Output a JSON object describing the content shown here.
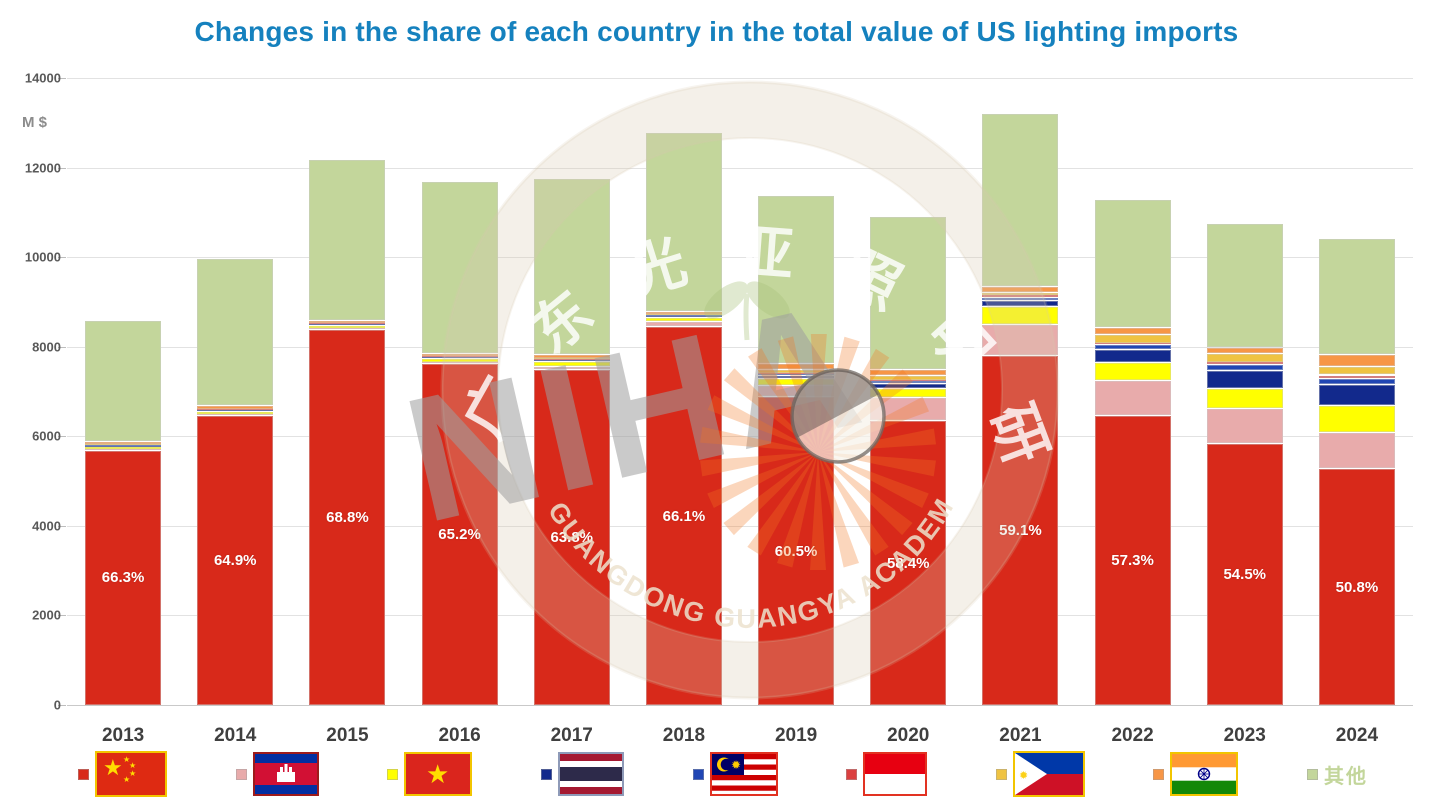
{
  "title": {
    "text": "Changes in the share of each country in the total value of US lighting imports",
    "color": "#1581BE"
  },
  "chart_data": {
    "type": "bar",
    "stacked": true,
    "title": "Changes in the share of each country in the total value of US lighting imports",
    "ylabel": "M $",
    "xlabel": "",
    "ylim": [
      0,
      14000
    ],
    "yticks": [
      0,
      2000,
      4000,
      6000,
      8000,
      10000,
      12000,
      14000
    ],
    "grid": "horizontal",
    "legend_position": "bottom",
    "categories": [
      "2013",
      "2014",
      "2015",
      "2016",
      "2017",
      "2018",
      "2019",
      "2020",
      "2021",
      "2022",
      "2023",
      "2024"
    ],
    "series": [
      {
        "key": "china",
        "name": "China",
        "color": "#D8291A",
        "values": [
          5700,
          6480,
          8390,
          7630,
          7500,
          8460,
          6890,
          6360,
          7810,
          6470,
          5860,
          5290
        ]
      },
      {
        "key": "cambodia",
        "name": "Cambodia",
        "color": "#E8ABAB",
        "values": [
          20,
          20,
          30,
          40,
          60,
          120,
          260,
          510,
          700,
          780,
          770,
          810
        ]
      },
      {
        "key": "vietnam",
        "name": "Vietnam",
        "color": "#FFFF00",
        "values": [
          40,
          60,
          60,
          80,
          120,
          90,
          160,
          200,
          390,
          400,
          450,
          600
        ]
      },
      {
        "key": "thailand",
        "name": "Thailand",
        "color": "#12298C",
        "values": [
          20,
          20,
          20,
          20,
          20,
          20,
          60,
          130,
          150,
          310,
          400,
          470
        ]
      },
      {
        "key": "malaysia",
        "name": "Malaysia",
        "color": "#2046B4",
        "values": [
          20,
          10,
          10,
          10,
          10,
          10,
          30,
          40,
          70,
          100,
          130,
          140
        ]
      },
      {
        "key": "indonesia",
        "name": "Indonesia",
        "color": "#DB4040",
        "values": [
          10,
          10,
          10,
          10,
          10,
          10,
          20,
          20,
          30,
          30,
          40,
          70
        ]
      },
      {
        "key": "philippines",
        "name": "Philippines",
        "color": "#EFC342",
        "values": [
          20,
          20,
          20,
          10,
          30,
          20,
          90,
          110,
          80,
          190,
          200,
          200
        ]
      },
      {
        "key": "india",
        "name": "India",
        "color": "#F79646",
        "values": [
          70,
          80,
          60,
          50,
          80,
          70,
          120,
          130,
          120,
          150,
          140,
          260
        ]
      },
      {
        "key": "others",
        "name": "其他",
        "color": "#C3D69B",
        "values": [
          2700,
          3280,
          3600,
          3850,
          3930,
          4000,
          3760,
          3410,
          3860,
          2860,
          2770,
          2590
        ]
      }
    ],
    "china_share_labels": [
      "66.3%",
      "64.9%",
      "68.8%",
      "65.2%",
      "63.8%",
      "66.1%",
      "60.5%",
      "58.4%",
      "59.1%",
      "57.3%",
      "54.5%",
      "50.8%"
    ],
    "totals_approx": [
      8600,
      9980,
      12200,
      11700,
      11760,
      12800,
      11390,
      10910,
      13210,
      11290,
      10760,
      10430
    ]
  },
  "legend": {
    "items": [
      {
        "series": "china",
        "flag": "flag-china-icon"
      },
      {
        "series": "cambodia",
        "flag": "flag-cambodia-icon"
      },
      {
        "series": "vietnam",
        "flag": "flag-vietnam-icon"
      },
      {
        "series": "thailand",
        "flag": "flag-thailand-icon"
      },
      {
        "series": "malaysia",
        "flag": "flag-malaysia-icon"
      },
      {
        "series": "indonesia",
        "flag": "flag-indonesia-icon"
      },
      {
        "series": "philippines",
        "flag": "flag-philippines-icon"
      },
      {
        "series": "india",
        "flag": "flag-india-icon"
      },
      {
        "series": "others",
        "label": "其他",
        "color": "#C3D69B"
      }
    ]
  },
  "watermark": {
    "chinese_arc_text": "广东光亚照明研究院",
    "english_arc_text": "GUANGDONG GUANGYA ACADEMY OF LIGHTING RESEARCH",
    "center_letters": "NIHA"
  }
}
